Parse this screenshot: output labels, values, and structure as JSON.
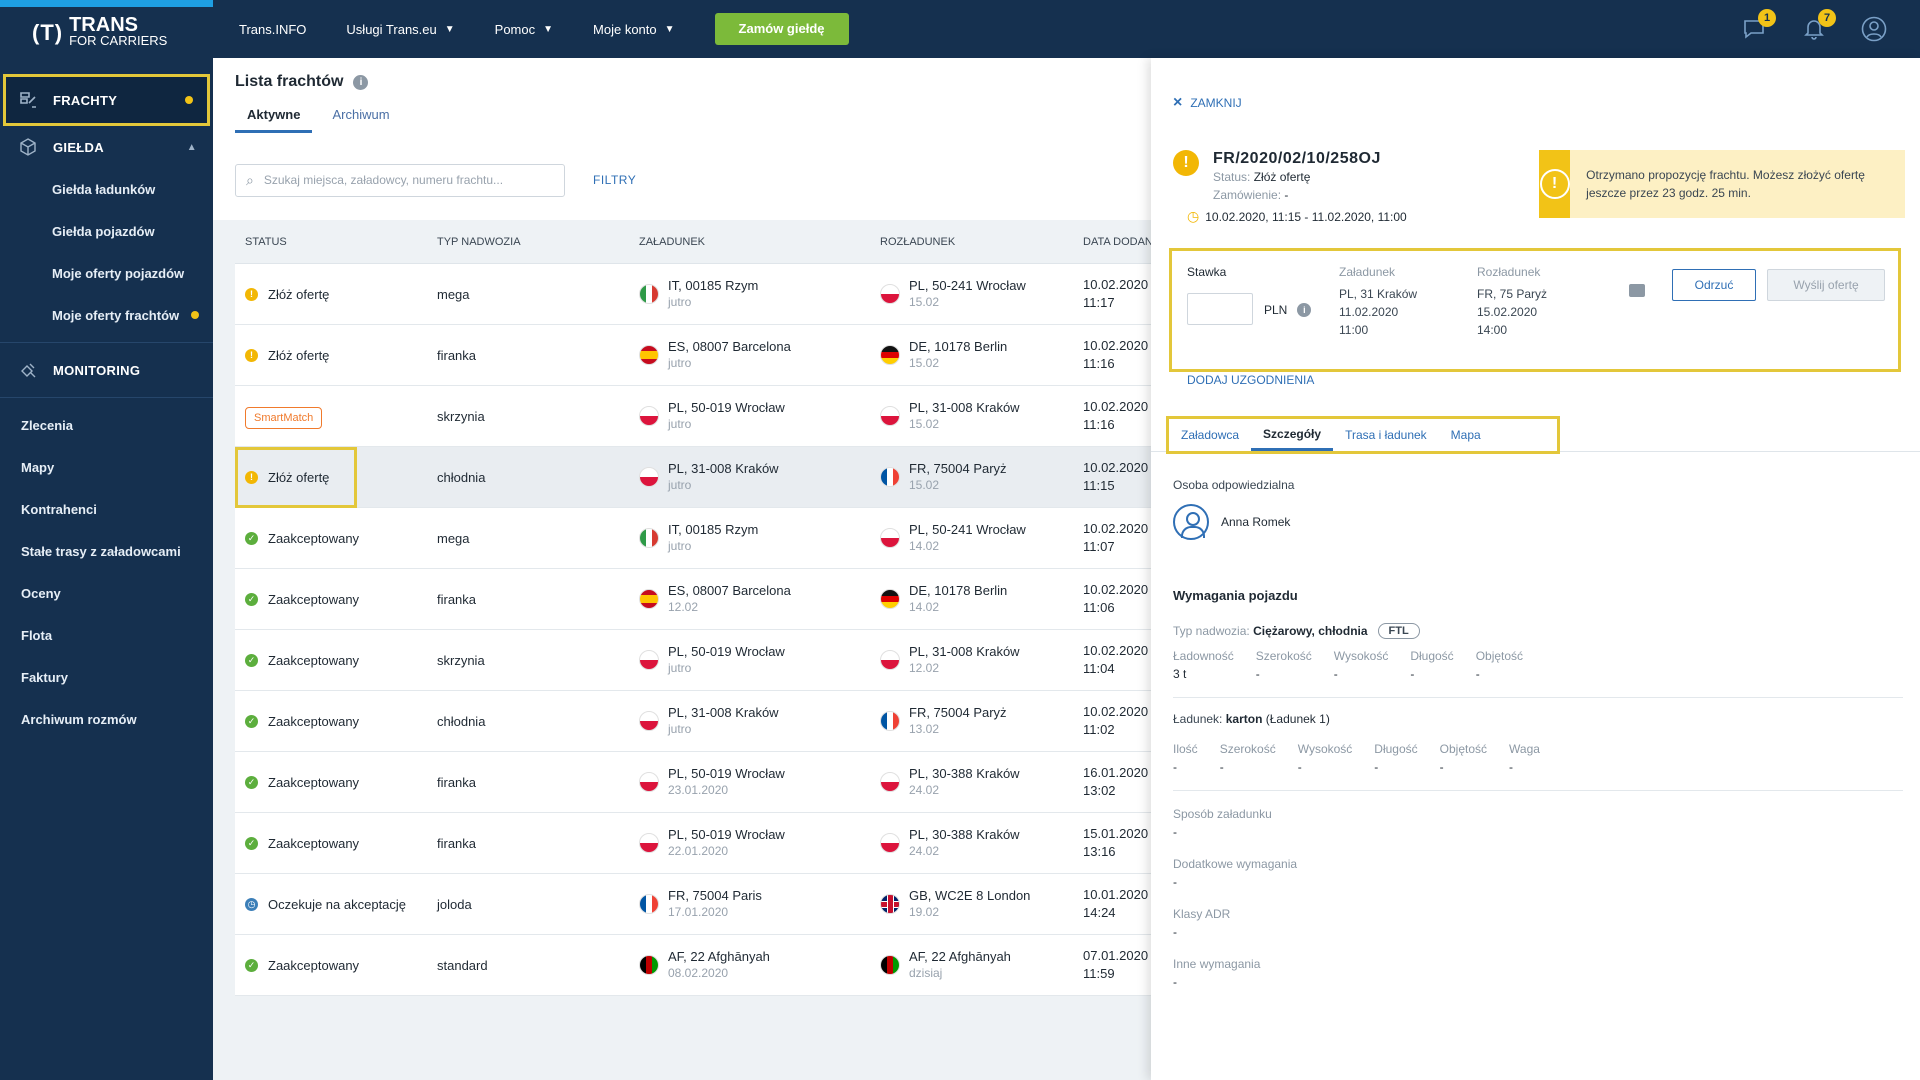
{
  "brand": {
    "logo_mark": "(T)",
    "logo_top": "TRANS",
    "logo_bottom": "FOR CARRIERS"
  },
  "sidebar": {
    "frachty": "FRACHTY",
    "gielda": "GIEŁDA",
    "gielda_sub": [
      "Giełda ładunków",
      "Giełda pojazdów",
      "Moje oferty pojazdów",
      "Moje oferty frachtów"
    ],
    "monitoring": "MONITORING",
    "links": [
      "Zlecenia",
      "Mapy",
      "Kontrahenci",
      "Stałe trasy z załadowcami",
      "Oceny",
      "Flota",
      "Faktury",
      "Archiwum rozmów"
    ]
  },
  "topbar": {
    "menu": [
      "Trans.INFO",
      "Usługi Trans.eu",
      "Pomoc",
      "Moje konto"
    ],
    "order_button": "Zamów giełdę",
    "messages_badge": "1",
    "notifications_badge": "7"
  },
  "main": {
    "title": "Lista frachtów",
    "tabs": [
      "Aktywne",
      "Archiwum"
    ],
    "search_placeholder": "Szukaj miejsca, załadowcy, numeru frachtu...",
    "filters": "FILTRY",
    "columns": [
      "STATUS",
      "TYP NADWOZIA",
      "ZAŁADUNEK",
      "ROZŁADUNEK",
      "DATA DODANIA"
    ],
    "rows": [
      {
        "status": "Złóż ofertę",
        "kind": "warn",
        "type": "mega",
        "load": "IT, 00185 Rzym",
        "load_date": "jutro",
        "load_flag": "it",
        "unload": "PL, 50-241 Wrocław",
        "unload_date": "15.02",
        "unload_flag": "pl",
        "date": "10.02.2020",
        "time": "11:17"
      },
      {
        "status": "Złóż ofertę",
        "kind": "warn",
        "type": "firanka",
        "load": "ES, 08007 Barcelona",
        "load_date": "jutro",
        "load_flag": "es",
        "unload": "DE, 10178 Berlin",
        "unload_date": "15.02",
        "unload_flag": "de",
        "date": "10.02.2020",
        "time": "11:16"
      },
      {
        "status": "SmartMatch",
        "kind": "smart",
        "type": "skrzynia",
        "load": "PL, 50-019 Wrocław",
        "load_date": "jutro",
        "load_flag": "pl",
        "unload": "PL, 31-008 Kraków",
        "unload_date": "15.02",
        "unload_flag": "pl",
        "date": "10.02.2020",
        "time": "11:16"
      },
      {
        "status": "Złóż ofertę",
        "kind": "warn",
        "type": "chłodnia",
        "load": "PL, 31-008 Kraków",
        "load_date": "jutro",
        "load_flag": "pl",
        "unload": "FR, 75004 Paryż",
        "unload_date": "15.02",
        "unload_flag": "fr",
        "date": "10.02.2020",
        "time": "11:15"
      },
      {
        "status": "Zaakceptowany",
        "kind": "ok",
        "type": "mega",
        "load": "IT, 00185 Rzym",
        "load_date": "jutro",
        "load_flag": "it",
        "unload": "PL, 50-241 Wrocław",
        "unload_date": "14.02",
        "unload_flag": "pl",
        "date": "10.02.2020",
        "time": "11:07"
      },
      {
        "status": "Zaakceptowany",
        "kind": "ok",
        "type": "firanka",
        "load": "ES, 08007 Barcelona",
        "load_date": "12.02",
        "load_flag": "es",
        "unload": "DE, 10178 Berlin",
        "unload_date": "14.02",
        "unload_flag": "de",
        "date": "10.02.2020",
        "time": "11:06"
      },
      {
        "status": "Zaakceptowany",
        "kind": "ok",
        "type": "skrzynia",
        "load": "PL, 50-019 Wrocław",
        "load_date": "jutro",
        "load_flag": "pl",
        "unload": "PL, 31-008 Kraków",
        "unload_date": "12.02",
        "unload_flag": "pl",
        "date": "10.02.2020",
        "time": "11:04"
      },
      {
        "status": "Zaakceptowany",
        "kind": "ok",
        "type": "chłodnia",
        "load": "PL, 31-008 Kraków",
        "load_date": "jutro",
        "load_flag": "pl",
        "unload": "FR, 75004 Paryż",
        "unload_date": "13.02",
        "unload_flag": "fr",
        "date": "10.02.2020",
        "time": "11:02"
      },
      {
        "status": "Zaakceptowany",
        "kind": "ok",
        "type": "firanka",
        "load": "PL, 50-019 Wrocław",
        "load_date": "23.01.2020",
        "load_flag": "pl",
        "unload": "PL, 30-388 Kraków",
        "unload_date": "24.02",
        "unload_flag": "pl",
        "date": "16.01.2020",
        "time": "13:02"
      },
      {
        "status": "Zaakceptowany",
        "kind": "ok",
        "type": "firanka",
        "load": "PL, 50-019 Wrocław",
        "load_date": "22.01.2020",
        "load_flag": "pl",
        "unload": "PL, 30-388 Kraków",
        "unload_date": "24.02",
        "unload_flag": "pl",
        "date": "15.01.2020",
        "time": "13:16"
      },
      {
        "status": "Oczekuje na akceptację",
        "kind": "wait",
        "type": "joloda",
        "load": "FR, 75004 Paris",
        "load_date": "17.01.2020",
        "load_flag": "fr",
        "unload": "GB, WC2E 8 London",
        "unload_date": "19.02",
        "unload_flag": "gb",
        "date": "10.01.2020",
        "time": "14:24"
      },
      {
        "status": "Zaakceptowany",
        "kind": "ok",
        "type": "standard",
        "load": "AF, 22 Afghānyah",
        "load_date": "08.02.2020",
        "load_flag": "af",
        "unload": "AF, 22 Afghānyah",
        "unload_date": "dzisiaj",
        "unload_flag": "af",
        "date": "07.01.2020",
        "time": "11:59"
      }
    ]
  },
  "panel": {
    "close": "ZAMKNIJ",
    "freight_number": "FR/2020/02/10/258OJ",
    "status_label": "Status:",
    "status_value": "Złóż ofertę",
    "order_label": "Zamówienie:",
    "order_value": "-",
    "time_range": "10.02.2020, 11:15 - 11.02.2020, 11:00",
    "alert_text": "Otrzymano propozycję frachtu. Możesz złożyć ofertę jeszcze przez 23 godz. 25 min.",
    "offer": {
      "rate_label": "Stawka",
      "currency": "PLN",
      "load_label": "Załadunek",
      "load_place": "PL, 31 Kraków",
      "load_date": "11.02.2020",
      "load_time": "11:00",
      "unload_label": "Rozładunek",
      "unload_place": "FR, 75 Paryż",
      "unload_date": "15.02.2020",
      "unload_time": "14:00",
      "reject": "Odrzuć",
      "send": "Wyślij ofertę",
      "add_agreements": "DODAJ UZGODNIENIA"
    },
    "tabs": [
      "Załadowca",
      "Szczegóły",
      "Trasa i ładunek",
      "Mapa"
    ],
    "details": {
      "person_label": "Osoba odpowiedzialna",
      "person_name": "Anna Romek",
      "vehicle_header": "Wymagania pojazdu",
      "body_label": "Typ nadwozia:",
      "body_value": "Ciężarowy, chłodnia",
      "ftl": "FTL",
      "vehicle_fields": [
        {
          "k": "Ładowność",
          "v": "3 t"
        },
        {
          "k": "Szerokość",
          "v": "-"
        },
        {
          "k": "Wysokość",
          "v": "-"
        },
        {
          "k": "Długość",
          "v": "-"
        },
        {
          "k": "Objętość",
          "v": "-"
        }
      ],
      "cargo_label": "Ładunek:",
      "cargo_value": "karton",
      "cargo_suffix": "(Ładunek 1)",
      "cargo_fields": [
        {
          "k": "Ilość",
          "v": "-"
        },
        {
          "k": "Szerokość",
          "v": "-"
        },
        {
          "k": "Wysokość",
          "v": "-"
        },
        {
          "k": "Długość",
          "v": "-"
        },
        {
          "k": "Objętość",
          "v": "-"
        },
        {
          "k": "Waga",
          "v": "-"
        }
      ],
      "extra_fields": [
        {
          "k": "Sposób załadunku",
          "v": "-"
        },
        {
          "k": "Dodatkowe wymagania",
          "v": "-"
        },
        {
          "k": "Klasy ADR",
          "v": "-"
        },
        {
          "k": "Inne wymagania",
          "v": "-"
        }
      ]
    }
  }
}
